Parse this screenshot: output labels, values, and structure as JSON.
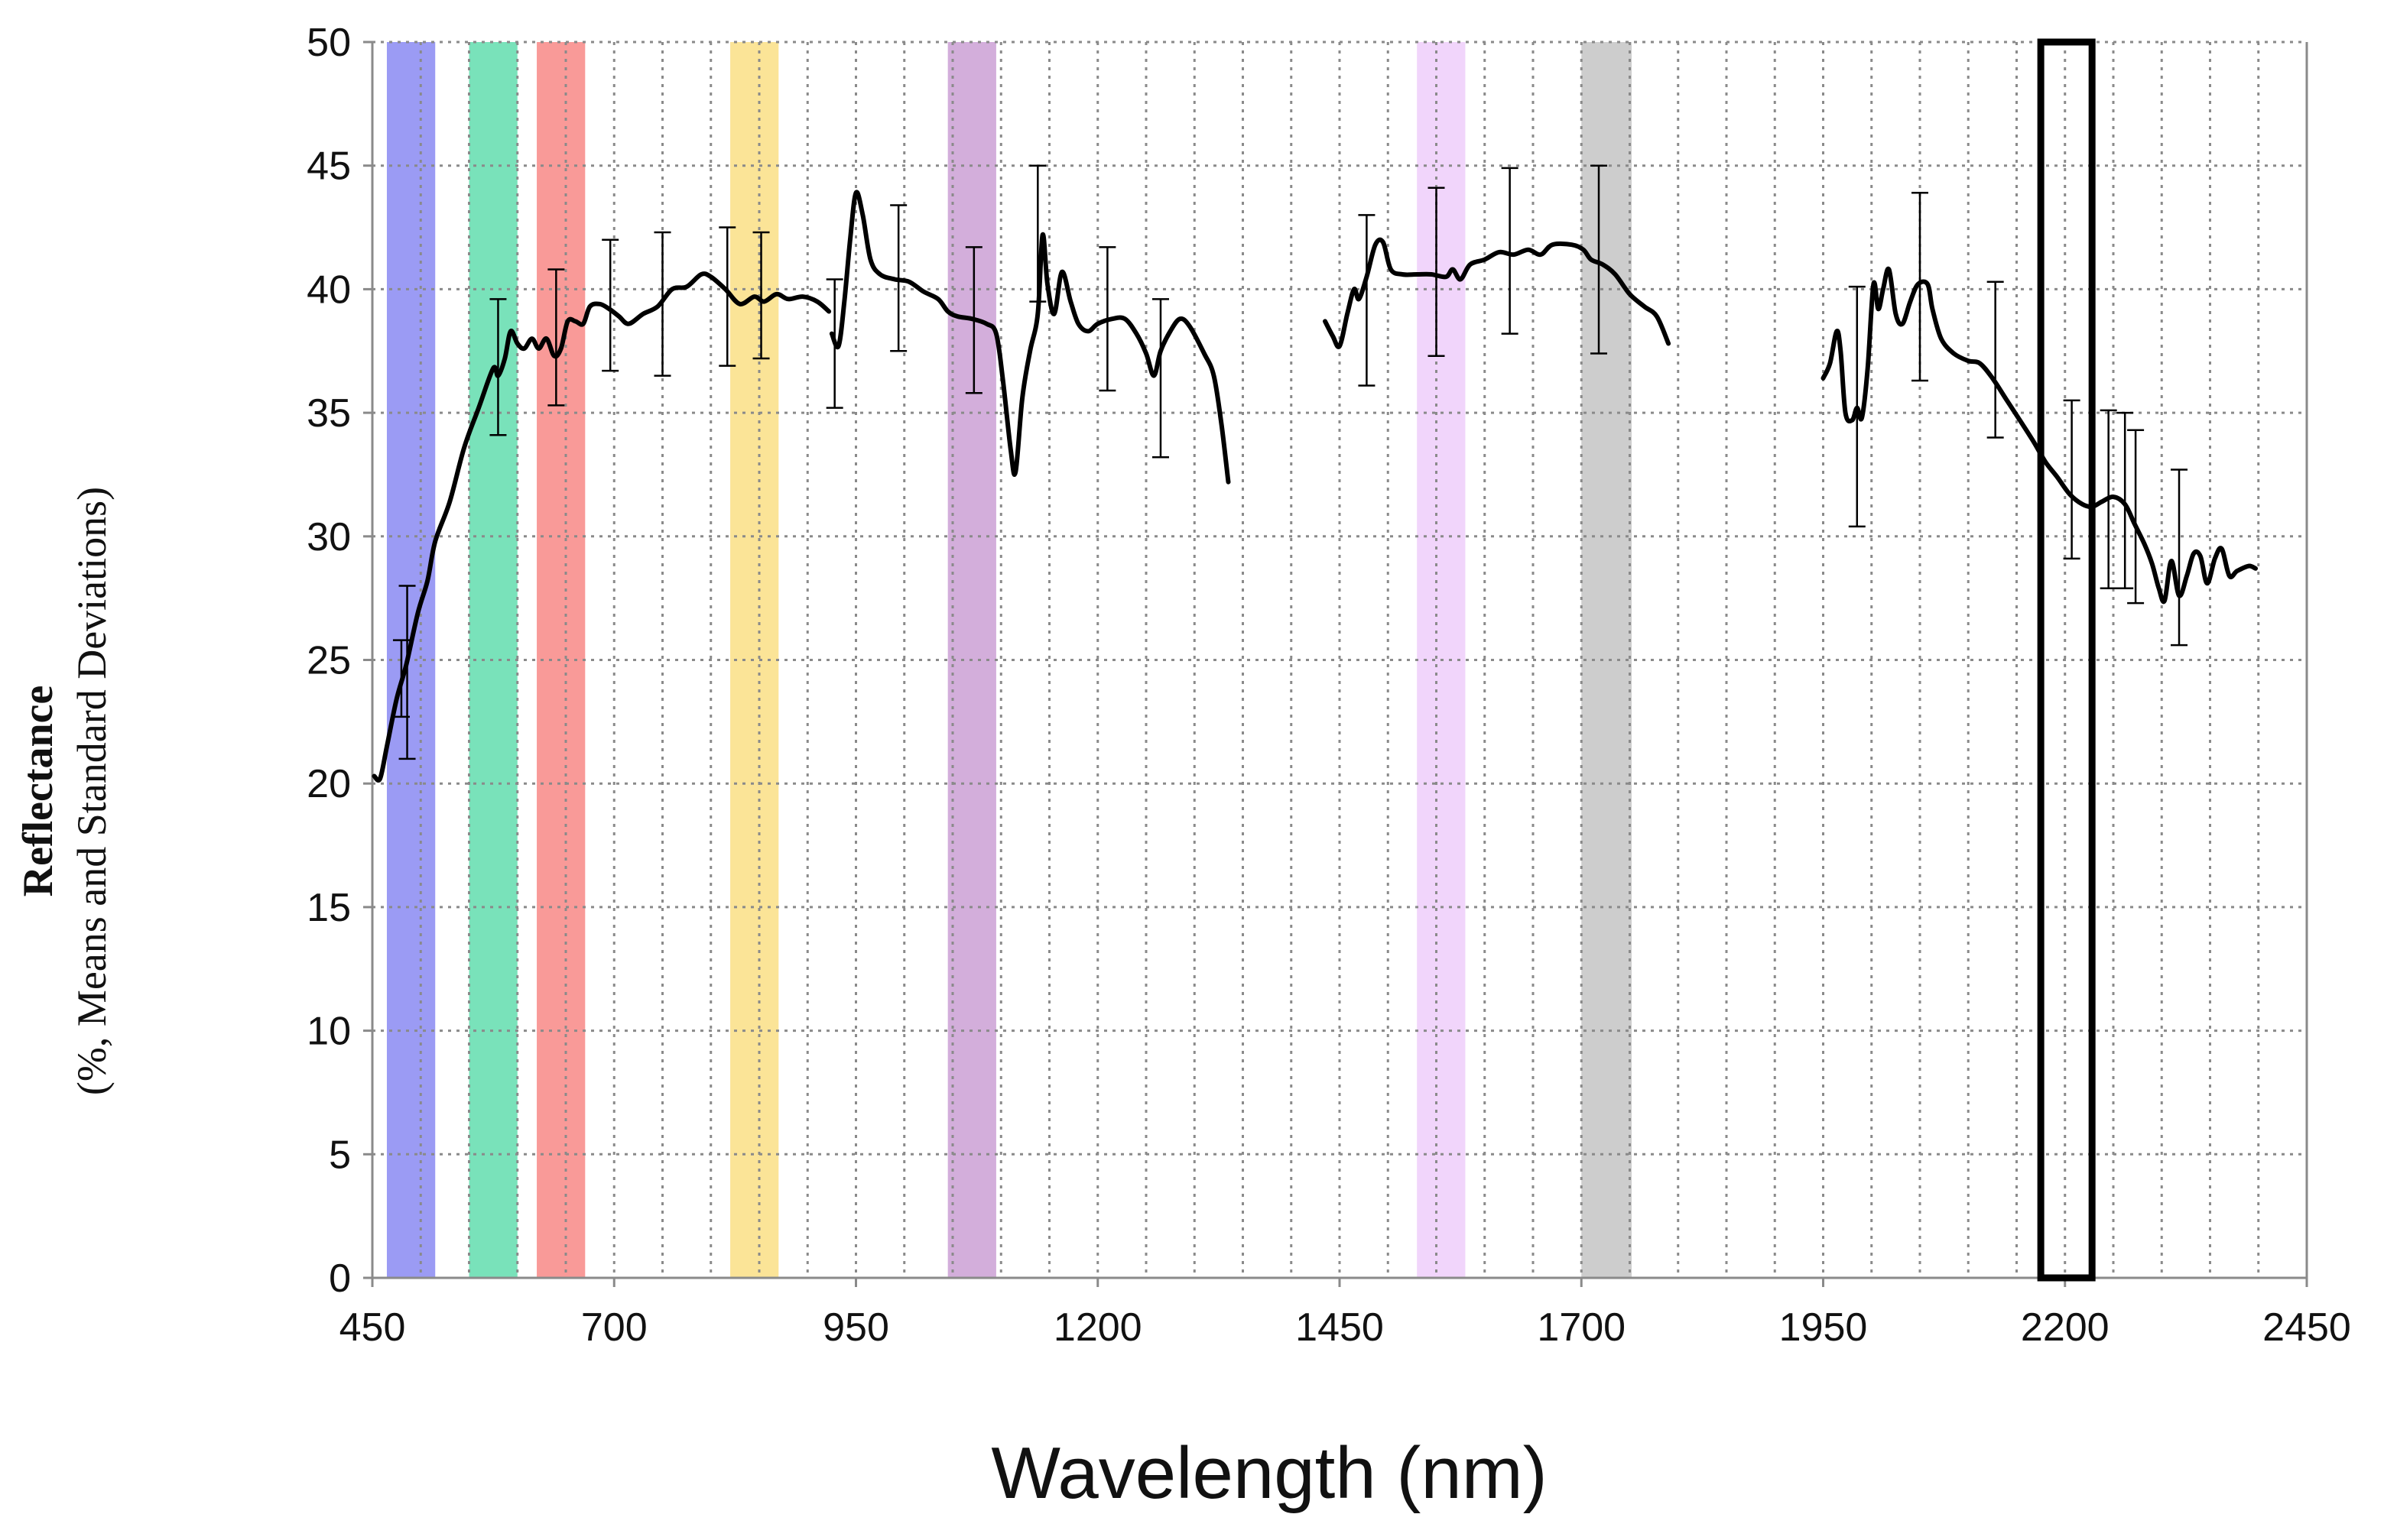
{
  "chart_data": {
    "type": "line",
    "title": "",
    "xlabel": "Wavelength (nm)",
    "ylabel": "Reflectance",
    "ylabel_sub": "(%, Means and Standard Deviations)",
    "xlim": [
      450,
      2450
    ],
    "ylim": [
      0,
      50
    ],
    "x_ticks": [
      450,
      700,
      950,
      1200,
      1450,
      1700,
      1950,
      2200,
      2450
    ],
    "y_ticks": [
      0,
      5,
      10,
      15,
      20,
      25,
      30,
      35,
      40,
      45,
      50
    ],
    "x_grid_step": 50,
    "grid": true,
    "legend": "none",
    "band_colors": {
      "blue": "#9b9bf4",
      "green": "#79e2ba",
      "red": "#f99a98",
      "yellow": "#fbe497",
      "purple": "#d3aedb",
      "pink": "#f1d5fb",
      "gray": "#cdcdcd"
    },
    "bands": [
      {
        "name": "blue",
        "x0": 465,
        "x1": 515,
        "color": "#9b9bf4"
      },
      {
        "name": "green",
        "x0": 550,
        "x1": 600,
        "color": "#79e2ba"
      },
      {
        "name": "red",
        "x0": 620,
        "x1": 670,
        "color": "#f99a98"
      },
      {
        "name": "yellow",
        "x0": 820,
        "x1": 870,
        "color": "#fbe497"
      },
      {
        "name": "purple",
        "x0": 1045,
        "x1": 1095,
        "color": "#d3aedb"
      },
      {
        "name": "pink",
        "x0": 1530,
        "x1": 1580,
        "color": "#f1d5fb"
      },
      {
        "name": "gray",
        "x0": 1700,
        "x1": 1752,
        "color": "#cdcdcd"
      }
    ],
    "highlight_box": {
      "x0": 2175,
      "x1": 2228,
      "y0": 0,
      "y1": 50
    },
    "series": [
      {
        "name": "segment-1",
        "points": [
          [
            452,
            20.3
          ],
          [
            458,
            20.2
          ],
          [
            465,
            21.5
          ],
          [
            475,
            23.4
          ],
          [
            485,
            24.8
          ],
          [
            497,
            26.9
          ],
          [
            507,
            28.2
          ],
          [
            515,
            29.8
          ],
          [
            530,
            31.4
          ],
          [
            545,
            33.6
          ],
          [
            560,
            35.2
          ],
          [
            575,
            36.8
          ],
          [
            580,
            36.5
          ],
          [
            587,
            37.2
          ],
          [
            593,
            38.3
          ],
          [
            600,
            37.8
          ],
          [
            607,
            37.6
          ],
          [
            615,
            38.0
          ],
          [
            622,
            37.6
          ],
          [
            630,
            38.0
          ],
          [
            638,
            37.3
          ],
          [
            645,
            37.6
          ],
          [
            652,
            38.7
          ],
          [
            660,
            38.7
          ],
          [
            668,
            38.6
          ],
          [
            675,
            39.3
          ],
          [
            685,
            39.4
          ],
          [
            695,
            39.2
          ],
          [
            705,
            38.9
          ],
          [
            715,
            38.6
          ],
          [
            730,
            39.0
          ],
          [
            745,
            39.3
          ],
          [
            760,
            40.0
          ],
          [
            775,
            40.1
          ],
          [
            790,
            40.6
          ],
          [
            800,
            40.5
          ],
          [
            815,
            40.0
          ],
          [
            830,
            39.4
          ],
          [
            845,
            39.7
          ],
          [
            855,
            39.5
          ],
          [
            868,
            39.8
          ],
          [
            880,
            39.6
          ],
          [
            895,
            39.7
          ],
          [
            910,
            39.5
          ],
          [
            922,
            39.1
          ]
        ]
      },
      {
        "name": "segment-2",
        "points": [
          [
            925,
            38.2
          ],
          [
            932,
            37.7
          ],
          [
            938,
            39.5
          ],
          [
            944,
            42.0
          ],
          [
            950,
            43.9
          ],
          [
            957,
            43.0
          ],
          [
            965,
            41.2
          ],
          [
            975,
            40.6
          ],
          [
            990,
            40.4
          ],
          [
            1005,
            40.3
          ],
          [
            1020,
            39.9
          ],
          [
            1035,
            39.6
          ],
          [
            1045,
            39.1
          ],
          [
            1055,
            38.9
          ],
          [
            1070,
            38.8
          ],
          [
            1085,
            38.6
          ],
          [
            1095,
            38.2
          ],
          [
            1102,
            36.3
          ],
          [
            1110,
            33.5
          ],
          [
            1115,
            32.6
          ],
          [
            1122,
            35.6
          ],
          [
            1130,
            37.5
          ],
          [
            1138,
            39.0
          ],
          [
            1143,
            42.2
          ],
          [
            1148,
            40.2
          ],
          [
            1155,
            39.0
          ],
          [
            1163,
            40.7
          ],
          [
            1172,
            39.5
          ],
          [
            1180,
            38.6
          ],
          [
            1190,
            38.3
          ],
          [
            1200,
            38.6
          ],
          [
            1215,
            38.8
          ],
          [
            1228,
            38.8
          ],
          [
            1240,
            38.2
          ],
          [
            1250,
            37.4
          ],
          [
            1258,
            36.5
          ],
          [
            1265,
            37.5
          ],
          [
            1275,
            38.3
          ],
          [
            1285,
            38.8
          ],
          [
            1295,
            38.5
          ],
          [
            1310,
            37.4
          ],
          [
            1320,
            36.5
          ],
          [
            1328,
            34.5
          ],
          [
            1335,
            32.2
          ]
        ]
      },
      {
        "name": "segment-3",
        "points": [
          [
            1435,
            38.7
          ],
          [
            1443,
            38.1
          ],
          [
            1450,
            37.7
          ],
          [
            1458,
            39.0
          ],
          [
            1465,
            40.0
          ],
          [
            1470,
            39.6
          ],
          [
            1478,
            40.5
          ],
          [
            1487,
            41.8
          ],
          [
            1495,
            41.9
          ],
          [
            1503,
            40.8
          ],
          [
            1515,
            40.6
          ],
          [
            1530,
            40.6
          ],
          [
            1545,
            40.6
          ],
          [
            1560,
            40.5
          ],
          [
            1567,
            40.8
          ],
          [
            1575,
            40.4
          ],
          [
            1585,
            41.0
          ],
          [
            1600,
            41.2
          ],
          [
            1615,
            41.5
          ],
          [
            1630,
            41.4
          ],
          [
            1645,
            41.6
          ],
          [
            1658,
            41.4
          ],
          [
            1670,
            41.8
          ],
          [
            1690,
            41.8
          ],
          [
            1702,
            41.6
          ],
          [
            1710,
            41.2
          ],
          [
            1722,
            41.0
          ],
          [
            1735,
            40.6
          ],
          [
            1750,
            39.8
          ],
          [
            1765,
            39.3
          ],
          [
            1778,
            38.9
          ],
          [
            1790,
            37.8
          ]
        ]
      },
      {
        "name": "segment-4",
        "points": [
          [
            1950,
            36.4
          ],
          [
            1957,
            37.0
          ],
          [
            1964,
            38.3
          ],
          [
            1968,
            37.5
          ],
          [
            1973,
            35.0
          ],
          [
            1980,
            34.7
          ],
          [
            1985,
            35.2
          ],
          [
            1990,
            34.8
          ],
          [
            1996,
            36.8
          ],
          [
            2002,
            40.2
          ],
          [
            2007,
            39.2
          ],
          [
            2012,
            40.0
          ],
          [
            2018,
            40.8
          ],
          [
            2025,
            39.0
          ],
          [
            2032,
            38.6
          ],
          [
            2040,
            39.5
          ],
          [
            2048,
            40.2
          ],
          [
            2058,
            40.2
          ],
          [
            2063,
            39.2
          ],
          [
            2072,
            38.0
          ],
          [
            2085,
            37.4
          ],
          [
            2100,
            37.1
          ],
          [
            2112,
            37.0
          ],
          [
            2125,
            36.4
          ],
          [
            2140,
            35.5
          ],
          [
            2155,
            34.6
          ],
          [
            2168,
            33.8
          ],
          [
            2180,
            33.0
          ],
          [
            2192,
            32.4
          ],
          [
            2205,
            31.7
          ],
          [
            2218,
            31.3
          ],
          [
            2228,
            31.2
          ],
          [
            2238,
            31.4
          ],
          [
            2250,
            31.6
          ],
          [
            2262,
            31.3
          ],
          [
            2272,
            30.5
          ],
          [
            2282,
            29.7
          ],
          [
            2290,
            28.9
          ],
          [
            2297,
            27.9
          ],
          [
            2303,
            27.4
          ],
          [
            2310,
            29.0
          ],
          [
            2318,
            27.6
          ],
          [
            2326,
            28.4
          ],
          [
            2333,
            29.3
          ],
          [
            2340,
            29.2
          ],
          [
            2347,
            28.1
          ],
          [
            2355,
            29.1
          ],
          [
            2362,
            29.5
          ],
          [
            2370,
            28.4
          ],
          [
            2378,
            28.6
          ],
          [
            2390,
            28.8
          ],
          [
            2397,
            28.7
          ]
        ]
      }
    ],
    "error_bars": [
      {
        "x": 480,
        "low": 22.7,
        "high": 25.8
      },
      {
        "x": 486,
        "low": 21.0,
        "high": 28.0
      },
      {
        "x": 580,
        "low": 34.1,
        "high": 39.6
      },
      {
        "x": 640,
        "low": 35.3,
        "high": 40.8
      },
      {
        "x": 696,
        "low": 36.7,
        "high": 42.0
      },
      {
        "x": 750,
        "low": 36.5,
        "high": 42.3
      },
      {
        "x": 817,
        "low": 36.9,
        "high": 42.5
      },
      {
        "x": 852,
        "low": 37.2,
        "high": 42.3
      },
      {
        "x": 928,
        "low": 35.2,
        "high": 40.4
      },
      {
        "x": 994,
        "low": 37.5,
        "high": 43.4
      },
      {
        "x": 1072,
        "low": 35.8,
        "high": 41.7
      },
      {
        "x": 1138,
        "low": 39.5,
        "high": 45.0
      },
      {
        "x": 1210,
        "low": 35.9,
        "high": 41.7
      },
      {
        "x": 1265,
        "low": 33.2,
        "high": 39.6
      },
      {
        "x": 1478,
        "low": 36.1,
        "high": 43.0
      },
      {
        "x": 1550,
        "low": 37.3,
        "high": 44.1
      },
      {
        "x": 1626,
        "low": 38.2,
        "high": 44.9
      },
      {
        "x": 1718,
        "low": 37.4,
        "high": 45.0
      },
      {
        "x": 1985,
        "low": 30.4,
        "high": 40.1
      },
      {
        "x": 2050,
        "low": 36.3,
        "high": 43.9
      },
      {
        "x": 2128,
        "low": 34.0,
        "high": 40.3
      },
      {
        "x": 2207,
        "low": 29.1,
        "high": 35.5
      },
      {
        "x": 2245,
        "low": 27.9,
        "high": 35.1
      },
      {
        "x": 2262,
        "low": 27.9,
        "high": 35.0
      },
      {
        "x": 2273,
        "low": 27.3,
        "high": 34.3
      },
      {
        "x": 2318,
        "low": 25.6,
        "high": 32.7
      }
    ]
  }
}
